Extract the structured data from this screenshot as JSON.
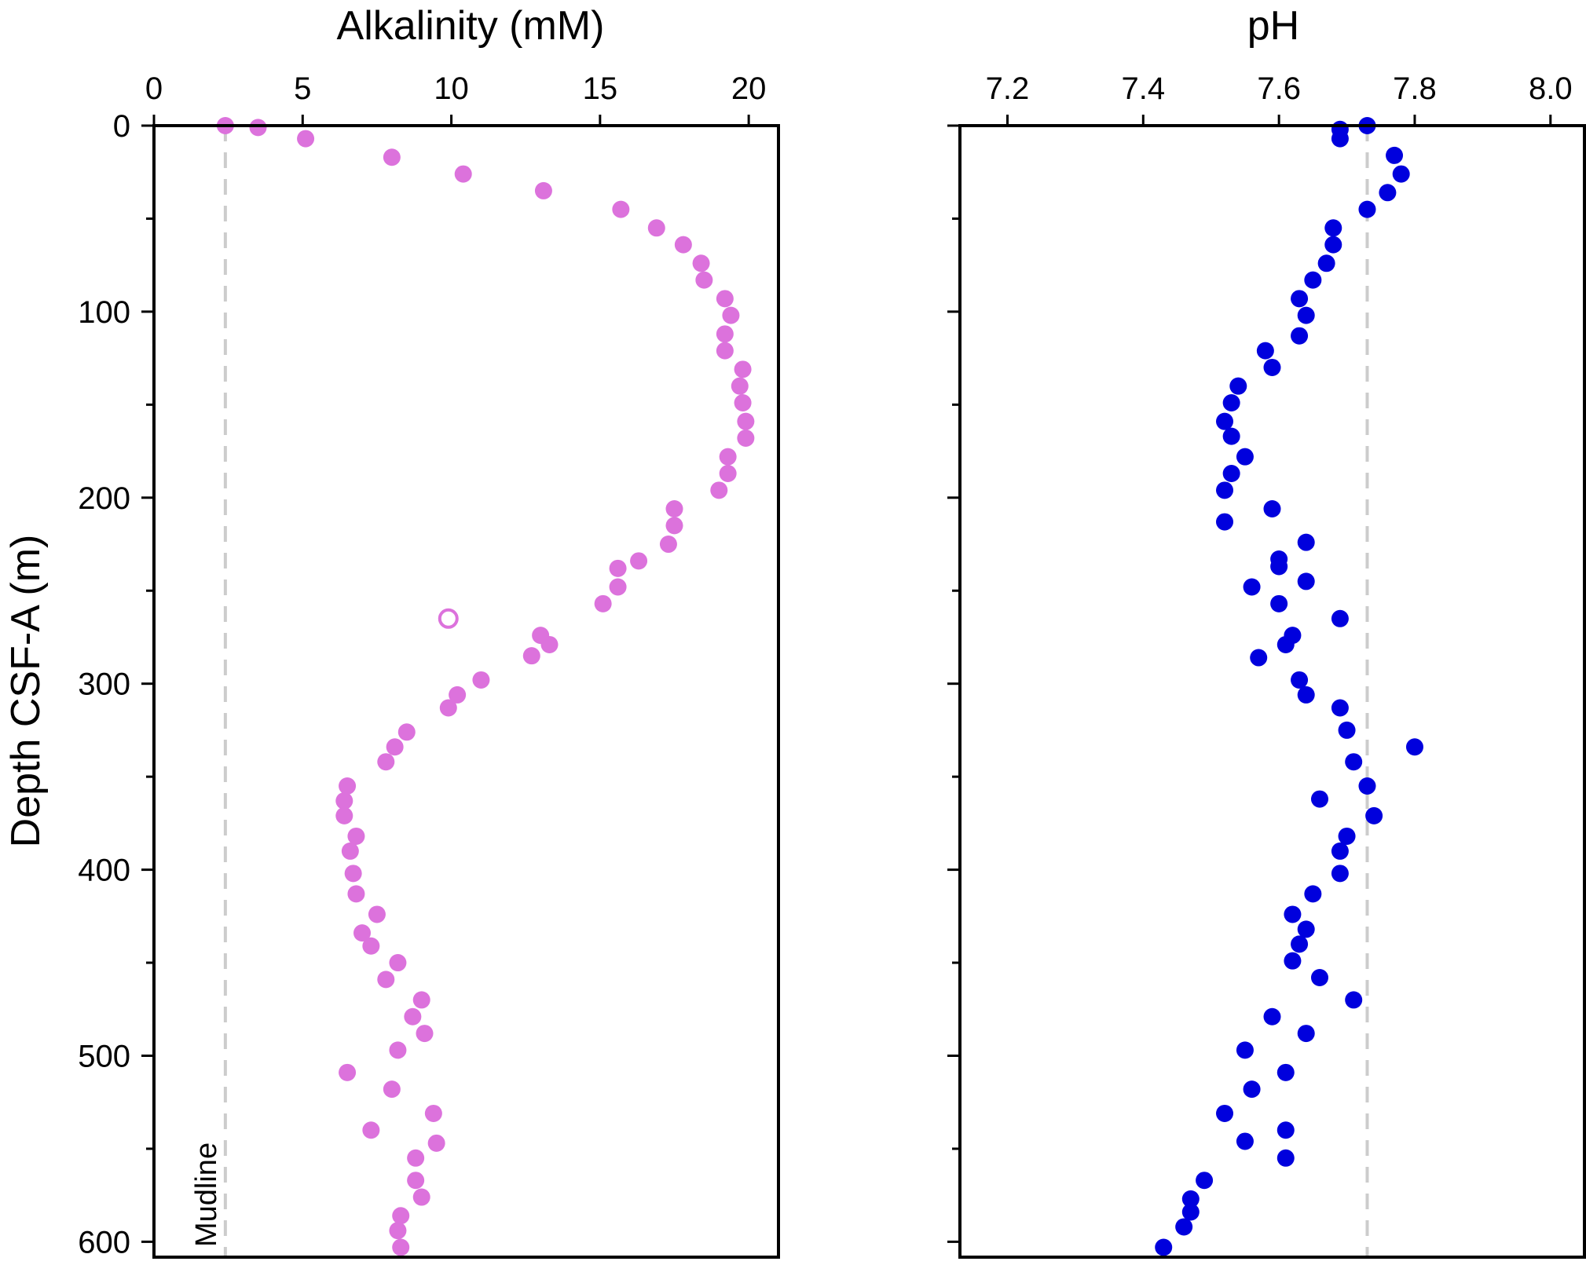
{
  "colors": {
    "alkalinity_points": "#dc72dc",
    "ph_points": "#0000dd",
    "reference_line": "#cccccc",
    "axes": "#000000"
  },
  "shared": {
    "ylabel": "Depth CSF-A (m)",
    "ylim": [
      0,
      608
    ],
    "yticks": [
      0,
      100,
      200,
      300,
      400,
      500,
      600
    ],
    "y_minor_step": 50,
    "inverted_y": true
  },
  "chart_data": [
    {
      "type": "scatter",
      "title": "Alkalinity (mM)",
      "xlabel": "Alkalinity (mM)",
      "ylabel": "Depth CSF-A (m)",
      "xlim": [
        0,
        21
      ],
      "xticks": [
        0,
        5,
        10,
        15,
        20
      ],
      "tick_labels": [
        "0",
        "5",
        "10",
        "15",
        "20"
      ],
      "reference_line": {
        "x": 2.4,
        "style": "dashed",
        "label": "Mudline"
      },
      "series": [
        {
          "marker": "filled-circle",
          "x": [
            2.4,
            3.5,
            5.1,
            8.0,
            10.4,
            13.1,
            15.7,
            16.9,
            17.8,
            18.4,
            18.5,
            19.2,
            19.4,
            19.2,
            19.2,
            19.8,
            19.7,
            19.8,
            19.9,
            19.9,
            19.3,
            19.3,
            19.0,
            17.5,
            17.5,
            17.3,
            16.3,
            15.6,
            15.6,
            15.1,
            13.0,
            13.3,
            12.7,
            11.0,
            10.2,
            9.9,
            8.5,
            8.1,
            7.8,
            6.5,
            6.4,
            6.4,
            6.8,
            6.6,
            6.7,
            6.8,
            7.5,
            7.0,
            7.3,
            8.2,
            7.8,
            9.0,
            8.7,
            9.1,
            8.2,
            6.5,
            8.0,
            9.4,
            7.3,
            9.5,
            8.8,
            8.8,
            9.0,
            8.3,
            8.2,
            8.3
          ],
          "y": [
            0,
            1,
            7,
            17,
            26,
            35,
            45,
            55,
            64,
            74,
            83,
            93,
            102,
            112,
            121,
            131,
            140,
            149,
            159,
            168,
            178,
            187,
            196,
            206,
            215,
            225,
            234,
            238,
            248,
            257,
            274,
            279,
            285,
            298,
            306,
            313,
            326,
            334,
            342,
            355,
            363,
            371,
            382,
            390,
            402,
            413,
            424,
            434,
            441,
            450,
            459,
            470,
            479,
            488,
            497,
            509,
            518,
            531,
            540,
            547,
            555,
            567,
            576,
            586,
            594,
            603
          ]
        },
        {
          "marker": "open-circle",
          "x": [
            9.9
          ],
          "y": [
            265
          ]
        }
      ]
    },
    {
      "type": "scatter",
      "title": "pH",
      "xlabel": "pH",
      "ylabel": "Depth CSF-A (m)",
      "xlim": [
        7.13,
        8.05
      ],
      "xticks": [
        7.2,
        7.4,
        7.6,
        7.8,
        8.0
      ],
      "tick_labels": [
        "7.2",
        "7.4",
        "7.6",
        "7.8",
        "8.0"
      ],
      "reference_line": {
        "x": 7.73,
        "style": "dashed"
      },
      "series": [
        {
          "marker": "filled-circle",
          "x": [
            7.73,
            7.69,
            7.69,
            7.77,
            7.78,
            7.76,
            7.73,
            7.68,
            7.68,
            7.67,
            7.65,
            7.63,
            7.64,
            7.63,
            7.58,
            7.59,
            7.54,
            7.53,
            7.52,
            7.53,
            7.55,
            7.53,
            7.52,
            7.59,
            7.52,
            7.64,
            7.6,
            7.6,
            7.64,
            7.56,
            7.6,
            7.69,
            7.62,
            7.61,
            7.57,
            7.63,
            7.64,
            7.69,
            7.7,
            7.8,
            7.71,
            7.73,
            7.66,
            7.74,
            7.7,
            7.69,
            7.69,
            7.65,
            7.62,
            7.64,
            7.63,
            7.62,
            7.66,
            7.71,
            7.59,
            7.64,
            7.55,
            7.61,
            7.56,
            7.52,
            7.61,
            7.55,
            7.61,
            7.49,
            7.47,
            7.47,
            7.46,
            7.43
          ],
          "y": [
            0,
            2,
            7,
            16,
            26,
            36,
            45,
            55,
            64,
            74,
            83,
            93,
            102,
            113,
            121,
            130,
            140,
            149,
            159,
            167,
            178,
            187,
            196,
            206,
            213,
            224,
            233,
            237,
            245,
            248,
            257,
            265,
            274,
            279,
            286,
            298,
            306,
            313,
            325,
            334,
            342,
            355,
            362,
            371,
            382,
            390,
            402,
            413,
            424,
            432,
            440,
            449,
            458,
            470,
            479,
            488,
            497,
            509,
            518,
            531,
            540,
            546,
            555,
            567,
            577,
            584,
            592,
            603
          ]
        }
      ]
    }
  ]
}
